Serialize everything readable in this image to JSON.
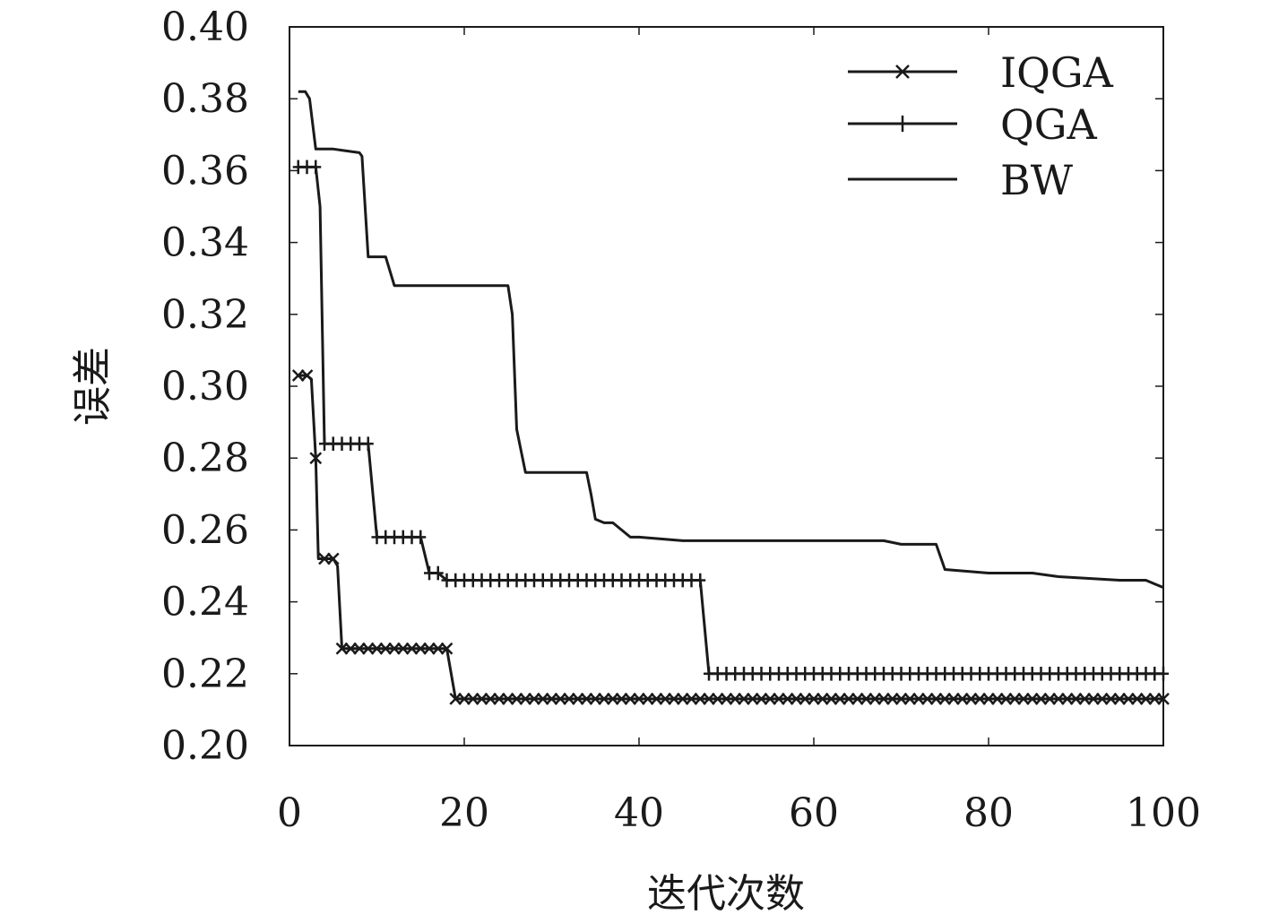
{
  "chart_data": {
    "type": "line",
    "xlabel": "迭代次数",
    "ylabel": "误差",
    "xlim": [
      0,
      100
    ],
    "ylim": [
      0.2,
      0.4
    ],
    "x_ticks": [
      "0",
      "20",
      "40",
      "60",
      "80",
      "100"
    ],
    "y_ticks": [
      "0.20",
      "0.22",
      "0.24",
      "0.26",
      "0.28",
      "0.30",
      "0.32",
      "0.34",
      "0.36",
      "0.38",
      "0.40"
    ],
    "grid": false,
    "legend_position": "top-right",
    "line_color": "#1a1a1a",
    "series": [
      {
        "name": "IQGA",
        "marker": "x",
        "points": [
          [
            1,
            0.303
          ],
          [
            2,
            0.303
          ],
          [
            2.5,
            0.302
          ],
          [
            3,
            0.28
          ],
          [
            3.3,
            0.252
          ],
          [
            4,
            0.252
          ],
          [
            5,
            0.252
          ],
          [
            5.5,
            0.25
          ],
          [
            6,
            0.227
          ],
          [
            7,
            0.227
          ],
          [
            8,
            0.227
          ],
          [
            9,
            0.227
          ],
          [
            10,
            0.227
          ],
          [
            11,
            0.227
          ],
          [
            12,
            0.227
          ],
          [
            13,
            0.227
          ],
          [
            14,
            0.227
          ],
          [
            15,
            0.227
          ],
          [
            16,
            0.227
          ],
          [
            17,
            0.227
          ],
          [
            18,
            0.227
          ],
          [
            19,
            0.213
          ],
          [
            20,
            0.213
          ],
          [
            21,
            0.213
          ],
          [
            22,
            0.213
          ],
          [
            23,
            0.213
          ],
          [
            24,
            0.213
          ],
          [
            25,
            0.213
          ],
          [
            26,
            0.213
          ],
          [
            27,
            0.213
          ],
          [
            28,
            0.213
          ],
          [
            29,
            0.213
          ],
          [
            30,
            0.213
          ],
          [
            31,
            0.213
          ],
          [
            32,
            0.213
          ],
          [
            33,
            0.213
          ],
          [
            34,
            0.213
          ],
          [
            35,
            0.213
          ],
          [
            36,
            0.213
          ],
          [
            37,
            0.213
          ],
          [
            38,
            0.213
          ],
          [
            39,
            0.213
          ],
          [
            40,
            0.213
          ],
          [
            41,
            0.213
          ],
          [
            42,
            0.213
          ],
          [
            43,
            0.213
          ],
          [
            44,
            0.213
          ],
          [
            45,
            0.213
          ],
          [
            46,
            0.213
          ],
          [
            47,
            0.213
          ],
          [
            48,
            0.213
          ],
          [
            49,
            0.213
          ],
          [
            50,
            0.213
          ],
          [
            51,
            0.213
          ],
          [
            52,
            0.213
          ],
          [
            53,
            0.213
          ],
          [
            54,
            0.213
          ],
          [
            55,
            0.213
          ],
          [
            56,
            0.213
          ],
          [
            57,
            0.213
          ],
          [
            58,
            0.213
          ],
          [
            59,
            0.213
          ],
          [
            60,
            0.213
          ],
          [
            61,
            0.213
          ],
          [
            62,
            0.213
          ],
          [
            63,
            0.213
          ],
          [
            64,
            0.213
          ],
          [
            65,
            0.213
          ],
          [
            66,
            0.213
          ],
          [
            67,
            0.213
          ],
          [
            68,
            0.213
          ],
          [
            69,
            0.213
          ],
          [
            70,
            0.213
          ],
          [
            71,
            0.213
          ],
          [
            72,
            0.213
          ],
          [
            73,
            0.213
          ],
          [
            74,
            0.213
          ],
          [
            75,
            0.213
          ],
          [
            76,
            0.213
          ],
          [
            77,
            0.213
          ],
          [
            78,
            0.213
          ],
          [
            79,
            0.213
          ],
          [
            80,
            0.213
          ],
          [
            81,
            0.213
          ],
          [
            82,
            0.213
          ],
          [
            83,
            0.213
          ],
          [
            84,
            0.213
          ],
          [
            85,
            0.213
          ],
          [
            86,
            0.213
          ],
          [
            87,
            0.213
          ],
          [
            88,
            0.213
          ],
          [
            89,
            0.213
          ],
          [
            90,
            0.213
          ],
          [
            91,
            0.213
          ],
          [
            92,
            0.213
          ],
          [
            93,
            0.213
          ],
          [
            94,
            0.213
          ],
          [
            95,
            0.213
          ],
          [
            96,
            0.213
          ],
          [
            97,
            0.213
          ],
          [
            98,
            0.213
          ],
          [
            99,
            0.213
          ],
          [
            100,
            0.213
          ]
        ]
      },
      {
        "name": "QGA",
        "marker": "+",
        "points": [
          [
            1,
            0.361
          ],
          [
            2,
            0.361
          ],
          [
            3,
            0.361
          ],
          [
            3.5,
            0.35
          ],
          [
            4,
            0.284
          ],
          [
            5,
            0.284
          ],
          [
            6,
            0.284
          ],
          [
            7,
            0.284
          ],
          [
            8,
            0.284
          ],
          [
            9,
            0.284
          ],
          [
            10,
            0.258
          ],
          [
            11,
            0.258
          ],
          [
            12,
            0.258
          ],
          [
            13,
            0.258
          ],
          [
            14,
            0.258
          ],
          [
            15,
            0.258
          ],
          [
            16,
            0.248
          ],
          [
            17,
            0.248
          ],
          [
            18,
            0.246
          ],
          [
            19,
            0.246
          ],
          [
            20,
            0.246
          ],
          [
            21,
            0.246
          ],
          [
            22,
            0.246
          ],
          [
            23,
            0.246
          ],
          [
            24,
            0.246
          ],
          [
            25,
            0.246
          ],
          [
            26,
            0.246
          ],
          [
            27,
            0.246
          ],
          [
            28,
            0.246
          ],
          [
            29,
            0.246
          ],
          [
            30,
            0.246
          ],
          [
            31,
            0.246
          ],
          [
            32,
            0.246
          ],
          [
            33,
            0.246
          ],
          [
            34,
            0.246
          ],
          [
            35,
            0.246
          ],
          [
            36,
            0.246
          ],
          [
            37,
            0.246
          ],
          [
            38,
            0.246
          ],
          [
            39,
            0.246
          ],
          [
            40,
            0.246
          ],
          [
            41,
            0.246
          ],
          [
            42,
            0.246
          ],
          [
            43,
            0.246
          ],
          [
            44,
            0.246
          ],
          [
            45,
            0.246
          ],
          [
            46,
            0.246
          ],
          [
            47,
            0.246
          ],
          [
            48,
            0.22
          ],
          [
            49,
            0.22
          ],
          [
            50,
            0.22
          ],
          [
            51,
            0.22
          ],
          [
            52,
            0.22
          ],
          [
            53,
            0.22
          ],
          [
            54,
            0.22
          ],
          [
            55,
            0.22
          ],
          [
            56,
            0.22
          ],
          [
            57,
            0.22
          ],
          [
            58,
            0.22
          ],
          [
            59,
            0.22
          ],
          [
            60,
            0.22
          ],
          [
            61,
            0.22
          ],
          [
            62,
            0.22
          ],
          [
            63,
            0.22
          ],
          [
            64,
            0.22
          ],
          [
            65,
            0.22
          ],
          [
            66,
            0.22
          ],
          [
            67,
            0.22
          ],
          [
            68,
            0.22
          ],
          [
            69,
            0.22
          ],
          [
            70,
            0.22
          ],
          [
            71,
            0.22
          ],
          [
            72,
            0.22
          ],
          [
            73,
            0.22
          ],
          [
            74,
            0.22
          ],
          [
            75,
            0.22
          ],
          [
            76,
            0.22
          ],
          [
            77,
            0.22
          ],
          [
            78,
            0.22
          ],
          [
            79,
            0.22
          ],
          [
            80,
            0.22
          ],
          [
            81,
            0.22
          ],
          [
            82,
            0.22
          ],
          [
            83,
            0.22
          ],
          [
            84,
            0.22
          ],
          [
            85,
            0.22
          ],
          [
            86,
            0.22
          ],
          [
            87,
            0.22
          ],
          [
            88,
            0.22
          ],
          [
            89,
            0.22
          ],
          [
            90,
            0.22
          ],
          [
            91,
            0.22
          ],
          [
            92,
            0.22
          ],
          [
            93,
            0.22
          ],
          [
            94,
            0.22
          ],
          [
            95,
            0.22
          ],
          [
            96,
            0.22
          ],
          [
            97,
            0.22
          ],
          [
            98,
            0.22
          ],
          [
            99,
            0.22
          ],
          [
            100,
            0.22
          ]
        ]
      },
      {
        "name": "BW",
        "marker": "none",
        "points": [
          [
            1,
            0.382
          ],
          [
            1.8,
            0.382
          ],
          [
            2.3,
            0.38
          ],
          [
            3,
            0.366
          ],
          [
            5,
            0.366
          ],
          [
            8,
            0.365
          ],
          [
            8.3,
            0.364
          ],
          [
            9,
            0.336
          ],
          [
            10,
            0.336
          ],
          [
            11,
            0.336
          ],
          [
            12,
            0.328
          ],
          [
            15,
            0.328
          ],
          [
            20,
            0.328
          ],
          [
            25,
            0.328
          ],
          [
            25.5,
            0.32
          ],
          [
            26,
            0.288
          ],
          [
            27,
            0.276
          ],
          [
            30,
            0.276
          ],
          [
            34,
            0.276
          ],
          [
            34.5,
            0.27
          ],
          [
            35,
            0.263
          ],
          [
            36,
            0.262
          ],
          [
            37,
            0.262
          ],
          [
            39,
            0.258
          ],
          [
            40,
            0.258
          ],
          [
            45,
            0.257
          ],
          [
            50,
            0.257
          ],
          [
            60,
            0.257
          ],
          [
            68,
            0.257
          ],
          [
            70,
            0.256
          ],
          [
            74,
            0.256
          ],
          [
            75,
            0.249
          ],
          [
            80,
            0.248
          ],
          [
            85,
            0.248
          ],
          [
            88,
            0.247
          ],
          [
            95,
            0.246
          ],
          [
            98,
            0.246
          ],
          [
            99,
            0.245
          ],
          [
            100,
            0.244
          ]
        ]
      }
    ]
  }
}
